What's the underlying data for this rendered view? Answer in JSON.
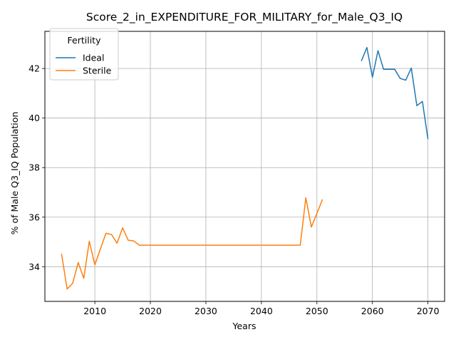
{
  "chart_data": {
    "type": "line",
    "title": "Score_2_in_EXPENDITURE_FOR_MILITARY_for_Male_Q3_IQ",
    "xlabel": "Years",
    "ylabel": "% of Male Q3_IQ Population",
    "xlim": [
      2001,
      2073
    ],
    "ylim": [
      32.6,
      43.5
    ],
    "xticks": [
      2010,
      2020,
      2030,
      2040,
      2050,
      2060,
      2070
    ],
    "yticks": [
      34,
      36,
      38,
      40,
      42
    ],
    "grid": true,
    "legend": {
      "title": "Fertility",
      "placement": "top-left"
    },
    "series": [
      {
        "name": "Ideal",
        "color": "#1f77b4",
        "x": [
          2058,
          2059,
          2060,
          2061,
          2062,
          2063,
          2064,
          2065,
          2066,
          2067,
          2068,
          2069,
          2070
        ],
        "y": [
          42.3,
          42.85,
          41.65,
          42.72,
          41.97,
          41.97,
          41.97,
          41.6,
          41.53,
          42.02,
          40.5,
          40.67,
          39.15
        ]
      },
      {
        "name": "Sterile",
        "color": "#ff7f0e",
        "x": [
          2004,
          2005,
          2006,
          2007,
          2008,
          2009,
          2010,
          2011,
          2012,
          2013,
          2014,
          2015,
          2016,
          2017,
          2018,
          2019,
          2020,
          2021,
          2022,
          2023,
          2024,
          2025,
          2026,
          2027,
          2028,
          2029,
          2030,
          2031,
          2032,
          2033,
          2034,
          2035,
          2036,
          2037,
          2038,
          2039,
          2040,
          2041,
          2042,
          2043,
          2044,
          2045,
          2046,
          2047,
          2048,
          2049,
          2050,
          2051
        ],
        "y": [
          34.52,
          33.1,
          33.33,
          34.17,
          33.53,
          35.03,
          34.07,
          34.72,
          35.35,
          35.3,
          34.95,
          35.57,
          35.07,
          35.04,
          34.87,
          34.87,
          34.87,
          34.87,
          34.87,
          34.87,
          34.87,
          34.87,
          34.87,
          34.87,
          34.87,
          34.87,
          34.87,
          34.87,
          34.87,
          34.87,
          34.87,
          34.87,
          34.87,
          34.87,
          34.87,
          34.87,
          34.87,
          34.87,
          34.87,
          34.87,
          34.87,
          34.87,
          34.87,
          34.87,
          36.78,
          35.6,
          36.15,
          36.72
        ]
      }
    ]
  }
}
